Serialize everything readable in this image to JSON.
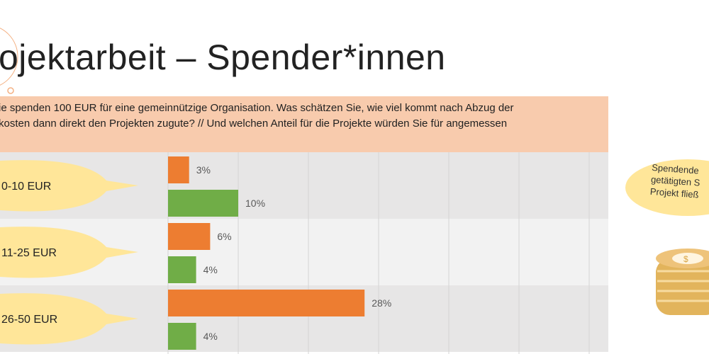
{
  "slide": {
    "title": "ojektarbeit – Spender*innen",
    "question_lines": [
      "ie spenden 100 EUR für eine gemeinnützige Organisation. Was schätzen Sie, wie viel kommt nach Abzug der",
      "kosten dann direkt den Projekten zugute? // Und welchen Anteil für die Projekte würden Sie für angemessen"
    ],
    "side_bubble_lines": [
      "Spendende",
      "getätigten S",
      "Projekt fließ"
    ],
    "coin_icon": "coin-stack-icon"
  },
  "chart_data": {
    "type": "bar",
    "orientation": "horizontal",
    "categories": [
      "0-10 EUR",
      "11-25 EUR",
      "26-50 EUR"
    ],
    "series": [
      {
        "color": "#ed7d31",
        "values": [
          3,
          6,
          28
        ],
        "labels": [
          "3%",
          "6%",
          "28%"
        ]
      },
      {
        "color": "#70ad47",
        "values": [
          10,
          4,
          4
        ],
        "labels": [
          "10%",
          "4%",
          "4%"
        ]
      }
    ],
    "xlim": [
      0,
      60
    ],
    "grid": true,
    "grid_step": 10,
    "row_colors": [
      "#e7e6e6",
      "#f2f2f2"
    ],
    "category_bubble_color": "#ffe699"
  }
}
